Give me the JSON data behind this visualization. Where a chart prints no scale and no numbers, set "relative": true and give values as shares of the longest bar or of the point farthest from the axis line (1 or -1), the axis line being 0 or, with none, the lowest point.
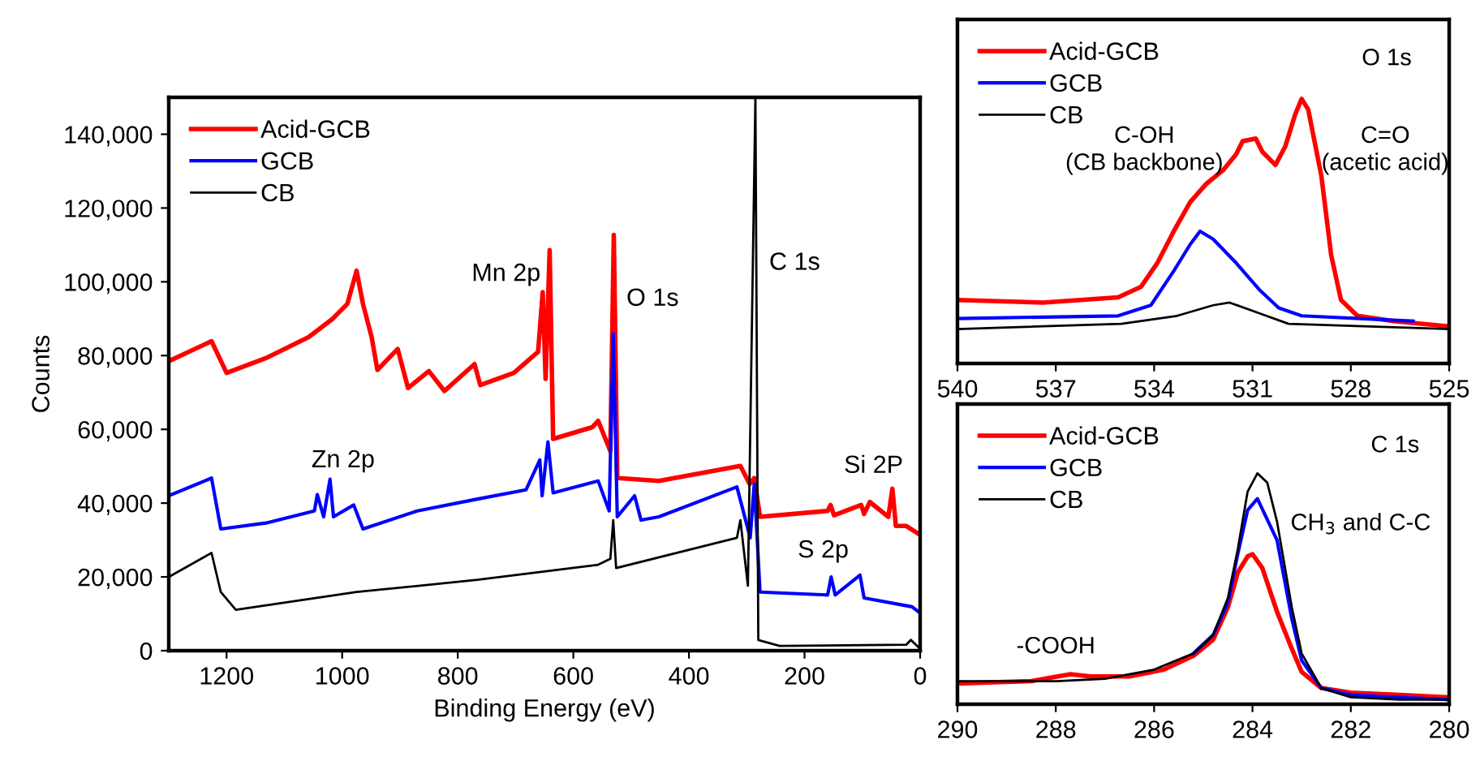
{
  "chart_data": [
    {
      "type": "line",
      "xlabel": "Binding Energy (eV)",
      "ylabel": "Counts",
      "xlim": [
        1300,
        0
      ],
      "xticks": [
        1200,
        1000,
        800,
        600,
        400,
        200,
        0
      ],
      "ylim": [
        0,
        150000
      ],
      "yticks": [
        {
          "value": 0,
          "label": "0"
        },
        {
          "value": 20000,
          "label": "20,000"
        },
        {
          "value": 40000,
          "label": "40,000"
        },
        {
          "value": 60000,
          "label": "60,000"
        },
        {
          "value": 80000,
          "label": "80,000"
        },
        {
          "value": 100000,
          "label": "100,000"
        },
        {
          "value": 120000,
          "label": "120,000"
        },
        {
          "value": 140000,
          "label": "140,000"
        }
      ],
      "legend": "top left",
      "grid": false,
      "annotations": [
        "Mn 2p",
        "O 1s",
        "C 1s",
        "Zn 2p",
        "Si 2P",
        "S 2p"
      ],
      "series": [
        {
          "name": "Acid-GCB",
          "color": "#ff0000",
          "x": [
            1300,
            1226,
            1200,
            1132,
            1058,
            1017,
            991,
            975,
            964,
            949,
            939,
            904,
            886,
            850,
            823,
            771,
            761,
            703,
            661,
            653,
            648,
            641,
            635,
            567,
            557,
            536,
            530,
            524,
            452,
            311,
            295,
            287,
            277,
            160,
            155,
            149,
            102,
            97,
            87,
            55,
            48,
            42,
            24,
            0
          ],
          "values": [
            78500,
            83900,
            75300,
            79300,
            85000,
            89900,
            94000,
            103000,
            94000,
            85000,
            76100,
            81800,
            71200,
            75800,
            70400,
            77700,
            72000,
            75300,
            81000,
            97200,
            73700,
            108600,
            57400,
            60600,
            62300,
            54100,
            112700,
            46800,
            46000,
            50100,
            45200,
            46800,
            36300,
            37900,
            39500,
            36700,
            39500,
            37100,
            40300,
            36300,
            43900,
            33800,
            33800,
            31400
          ]
        },
        {
          "name": "GCB",
          "color": "#0000ff",
          "x": [
            1300,
            1226,
            1210,
            1132,
            1048,
            1043,
            1032,
            1021,
            1015,
            980,
            964,
            870,
            766,
            682,
            658,
            654,
            644,
            635,
            557,
            538,
            531,
            524,
            494,
            483,
            452,
            317,
            294,
            287,
            277,
            160,
            154,
            147,
            104,
            97,
            14,
            0
          ],
          "values": [
            42000,
            46800,
            33000,
            34600,
            37900,
            42300,
            36300,
            46500,
            36300,
            39500,
            33000,
            37900,
            41100,
            43600,
            51700,
            42000,
            56600,
            42800,
            46000,
            37900,
            85900,
            36300,
            42000,
            35400,
            36300,
            44400,
            30600,
            45200,
            15900,
            15100,
            20000,
            15100,
            20500,
            14300,
            11900,
            10200
          ]
        },
        {
          "name": "CB",
          "color": "#000000",
          "x": [
            1300,
            1226,
            1210,
            1184,
            975,
            766,
            557,
            536,
            531,
            526,
            317,
            311,
            298,
            285,
            280,
            243,
            24,
            16,
            0
          ],
          "values": [
            20000,
            26500,
            15900,
            11100,
            15900,
            19200,
            23300,
            24900,
            35400,
            22400,
            30600,
            35400,
            17600,
            150000,
            2900,
            1300,
            1600,
            2900,
            500
          ]
        }
      ]
    },
    {
      "type": "line",
      "relative": true,
      "xlim": [
        540,
        525
      ],
      "xticks": [
        540,
        537,
        534,
        531,
        528,
        525
      ],
      "tick_labels": "x",
      "legend": "top left",
      "grid": false,
      "annotations": [
        "O 1s",
        "C-OH\n(CB backbone)",
        "C=O\n(acetic acid)"
      ],
      "series": [
        {
          "name": "Acid-GCB",
          "color": "#ff0000",
          "x": [
            540,
            537.4,
            535.1,
            534.4,
            533.9,
            533.4,
            532.9,
            532.4,
            531.9,
            531.5,
            531.3,
            530.9,
            530.7,
            530.3,
            530.0,
            529.7,
            529.5,
            529.3,
            528.9,
            528.6,
            528.3,
            527.8,
            526.7,
            525
          ],
          "values": [
            0.24,
            0.23,
            0.25,
            0.29,
            0.38,
            0.5,
            0.61,
            0.68,
            0.73,
            0.79,
            0.84,
            0.85,
            0.8,
            0.75,
            0.82,
            0.94,
            1.0,
            0.96,
            0.71,
            0.41,
            0.24,
            0.18,
            0.16,
            0.14
          ]
        },
        {
          "name": "GCB",
          "color": "#0000ff",
          "x": [
            540,
            535.1,
            534.1,
            533.4,
            532.9,
            532.6,
            532.2,
            531.5,
            530.8,
            530.2,
            529.5,
            526.1
          ],
          "values": [
            0.17,
            0.18,
            0.22,
            0.35,
            0.45,
            0.5,
            0.47,
            0.38,
            0.28,
            0.21,
            0.18,
            0.16
          ]
        },
        {
          "name": "CB",
          "color": "#000000",
          "x": [
            540,
            535,
            533.3,
            532.2,
            531.7,
            530.8,
            529.9,
            525
          ],
          "values": [
            0.13,
            0.15,
            0.18,
            0.22,
            0.23,
            0.19,
            0.15,
            0.13
          ]
        }
      ]
    },
    {
      "type": "line",
      "relative": true,
      "xlim": [
        290,
        280
      ],
      "xticks": [
        290,
        288,
        286,
        284,
        282,
        280
      ],
      "tick_labels": "x",
      "legend": "top left",
      "grid": false,
      "annotations": [
        "C 1s",
        "CH$_{3}$ and C-C",
        "-COOH"
      ],
      "series": [
        {
          "name": "Acid-GCB",
          "color": "#ff0000",
          "x": [
            290,
            288.5,
            287.7,
            287.3,
            286.5,
            285.8,
            285.2,
            284.8,
            284.5,
            284.3,
            284.1,
            284.0,
            283.8,
            283.5,
            283.2,
            283.0,
            282.6,
            282,
            281,
            280
          ],
          "values": [
            0.09,
            0.1,
            0.13,
            0.12,
            0.12,
            0.15,
            0.21,
            0.28,
            0.42,
            0.57,
            0.64,
            0.65,
            0.59,
            0.4,
            0.24,
            0.14,
            0.07,
            0.05,
            0.04,
            0.03
          ]
        },
        {
          "name": "GCB",
          "color": "#0000ff",
          "x": [
            null,
            null,
            null,
            null,
            285.2,
            284.8,
            284.5,
            284.3,
            284.1,
            283.9,
            283.5,
            283.2,
            283.0,
            282.6,
            282,
            280
          ],
          "values": [
            null,
            null,
            null,
            null,
            0.22,
            0.3,
            0.44,
            0.65,
            0.84,
            0.89,
            0.71,
            0.37,
            0.19,
            0.07,
            0.04,
            0.02
          ]
        },
        {
          "name": "CB",
          "color": "#000000",
          "x": [
            290,
            288,
            287,
            286,
            285.2,
            284.8,
            284.5,
            284.3,
            284.1,
            283.9,
            283.7,
            283.5,
            283.2,
            283.0,
            282.6,
            282,
            281,
            280
          ],
          "values": [
            0.1,
            0.1,
            0.11,
            0.15,
            0.22,
            0.3,
            0.46,
            0.67,
            0.92,
            1.0,
            0.96,
            0.79,
            0.42,
            0.22,
            0.07,
            0.03,
            0.02,
            0.02
          ]
        }
      ]
    }
  ]
}
